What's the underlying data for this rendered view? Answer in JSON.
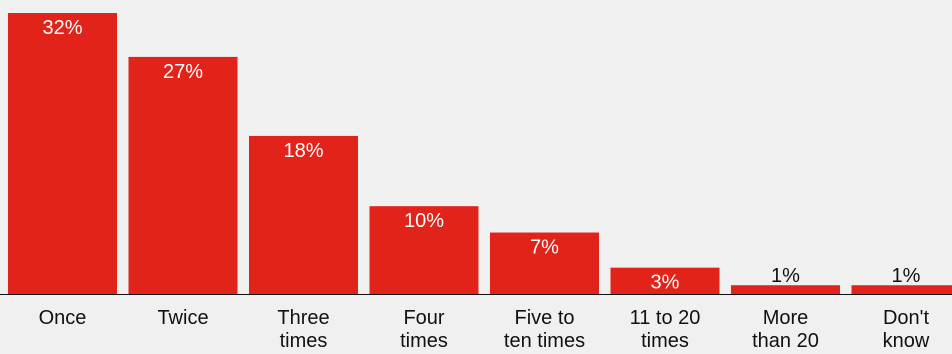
{
  "chart_data": {
    "type": "bar",
    "categories": [
      [
        "Once"
      ],
      [
        "Twice"
      ],
      [
        "Three",
        "times"
      ],
      [
        "Four",
        "times"
      ],
      [
        "Five to",
        "ten times"
      ],
      [
        "11 to 20",
        "times"
      ],
      [
        "More",
        "than 20"
      ],
      [
        "Don't",
        "know"
      ]
    ],
    "values": [
      32,
      27,
      18,
      10,
      7,
      3,
      1,
      1
    ],
    "data_labels": [
      "32%",
      "27%",
      "18%",
      "10%",
      "7%",
      "3%",
      "1%",
      "1%"
    ],
    "ylim": [
      0,
      32
    ],
    "grid": false,
    "legend": "none"
  },
  "colors": {
    "bar": "#e2231a",
    "background": "#f0f0f0",
    "axis": "#111111",
    "label_inside": "#ffffff",
    "label_outside": "#111111"
  }
}
